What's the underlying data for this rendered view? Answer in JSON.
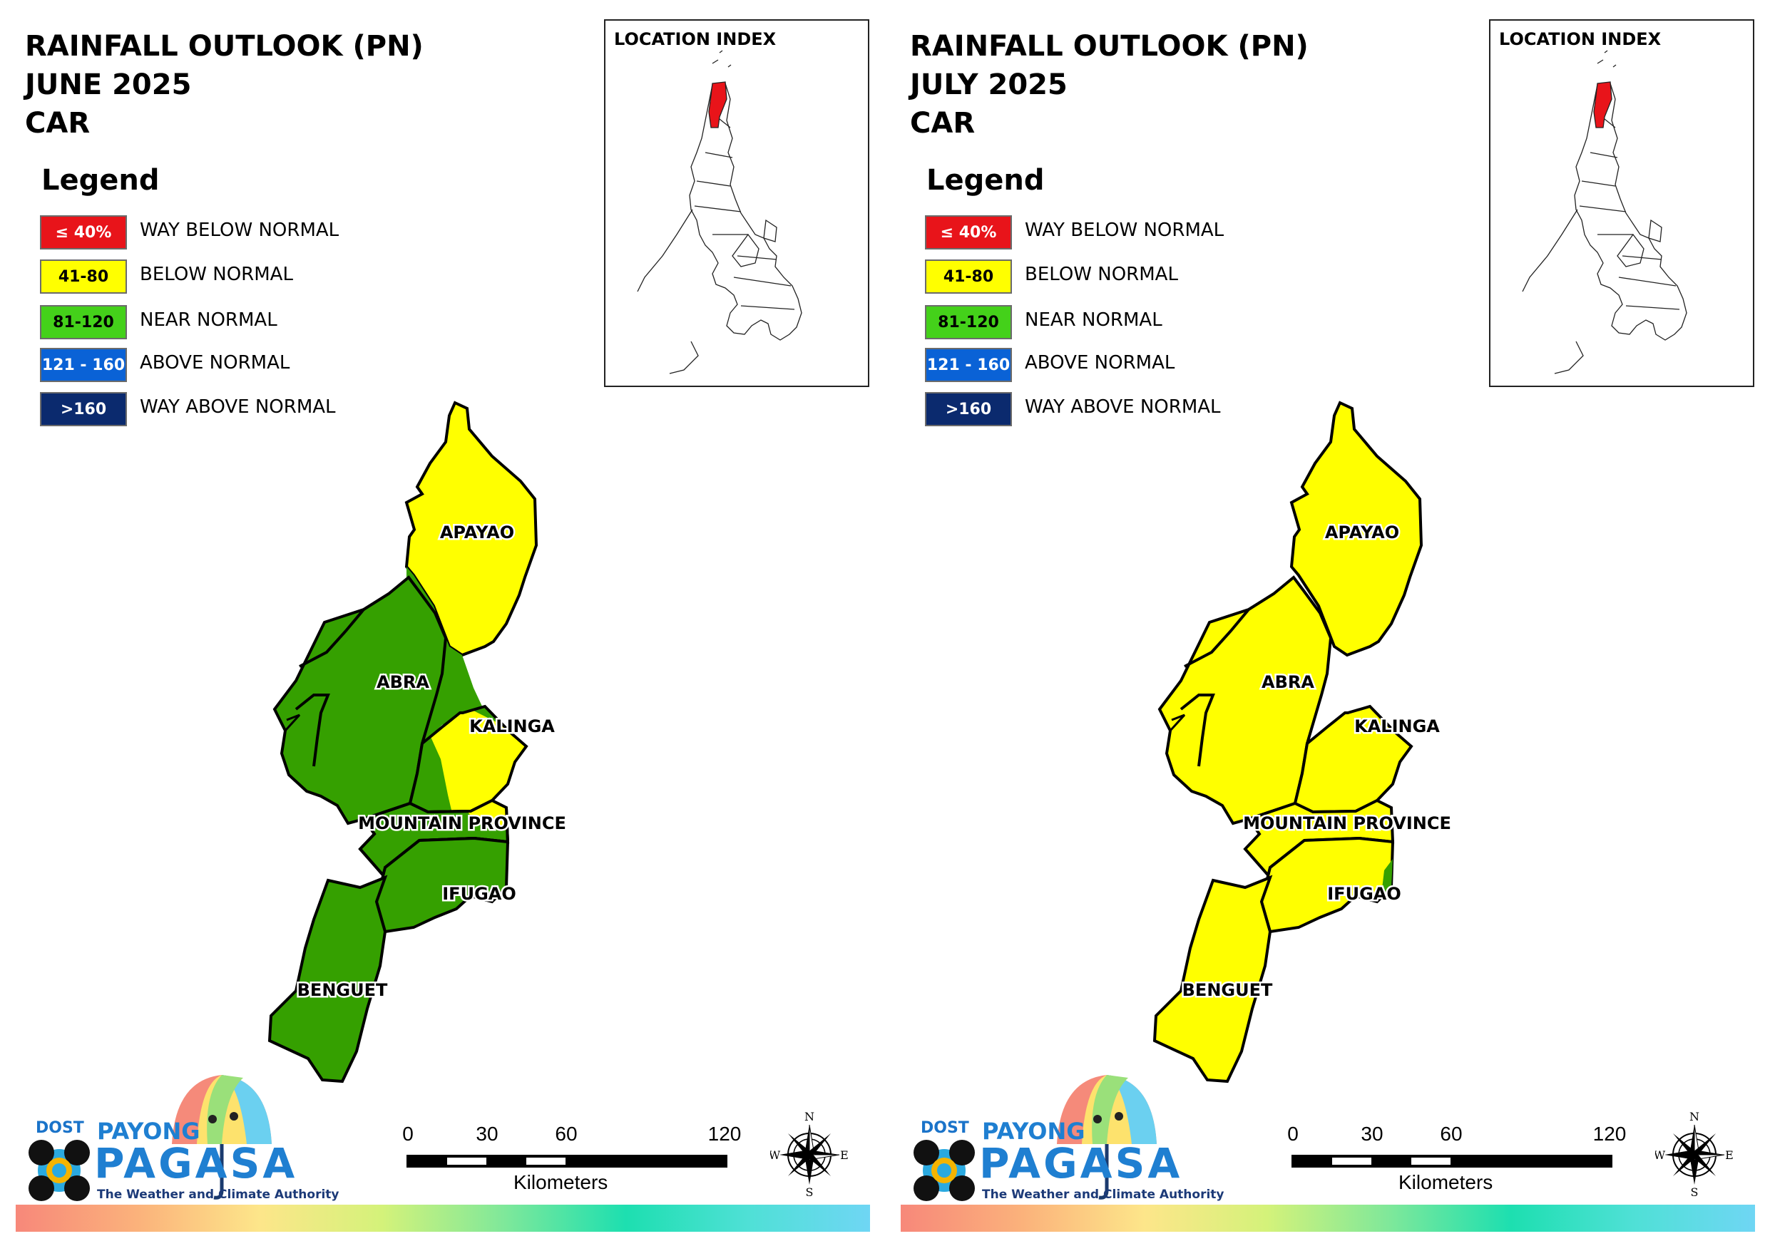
{
  "panels": [
    {
      "title_line1": "RAINFALL OUTLOOK (PN)",
      "title_line2": "JUNE 2025",
      "title_line3": "CAR",
      "provinces": {
        "apayao": {
          "name": "APAYAO",
          "category": "BELOW NORMAL"
        },
        "abra": {
          "name": "ABRA",
          "category": "NEAR NORMAL"
        },
        "kalinga": {
          "name": "KALINGA",
          "category": "NEAR NORMAL / BELOW NORMAL"
        },
        "mountain_province": {
          "name": "MOUNTAIN PROVINCE",
          "category": "NEAR NORMAL"
        },
        "ifugao": {
          "name": "IFUGAO",
          "category": "NEAR NORMAL"
        },
        "benguet": {
          "name": "BENGUET",
          "category": "NEAR NORMAL"
        }
      }
    },
    {
      "title_line1": "RAINFALL OUTLOOK (PN)",
      "title_line2": "JULY 2025",
      "title_line3": "CAR",
      "provinces": {
        "apayao": {
          "name": "APAYAO",
          "category": "BELOW NORMAL"
        },
        "abra": {
          "name": "ABRA",
          "category": "BELOW NORMAL"
        },
        "kalinga": {
          "name": "KALINGA",
          "category": "BELOW NORMAL"
        },
        "mountain_province": {
          "name": "MOUNTAIN PROVINCE",
          "category": "BELOW NORMAL"
        },
        "ifugao": {
          "name": "IFUGAO",
          "category": "BELOW NORMAL"
        },
        "benguet": {
          "name": "BENGUET",
          "category": "BELOW NORMAL"
        }
      }
    }
  ],
  "legend": {
    "title": "Legend",
    "items": [
      {
        "range": "≤ 40%",
        "label": "WAY BELOW NORMAL",
        "color": "#e8141a",
        "text_color": "#ffffff"
      },
      {
        "range": "41-80",
        "label": "BELOW NORMAL",
        "color": "#ffff00",
        "text_color": "#000000"
      },
      {
        "range": "81-120",
        "label": "NEAR NORMAL",
        "color": "#44d11a",
        "text_color": "#000000"
      },
      {
        "range": "121 - 160",
        "label": "ABOVE NORMAL",
        "color": "#0a62d6",
        "text_color": "#ffffff"
      },
      {
        "range": ">160",
        "label": "WAY ABOVE NORMAL",
        "color": "#0b2a6e",
        "text_color": "#ffffff"
      }
    ]
  },
  "map_colors": {
    "yellow": "#ffff00",
    "green": "#35a000",
    "border": "#000000",
    "highlight_red": "#e8141a"
  },
  "location_index": {
    "label": "LOCATION INDEX"
  },
  "scale": {
    "ticks": [
      "0",
      "30",
      "60",
      "120"
    ],
    "units": "Kilometers"
  },
  "compass": {
    "n": "N",
    "s": "S",
    "e": "E",
    "w": "W"
  },
  "branding": {
    "dost": "DOST",
    "payong": "PAYONG",
    "pagasa": "PAGASA",
    "tagline": "The Weather and Climate Authority"
  }
}
